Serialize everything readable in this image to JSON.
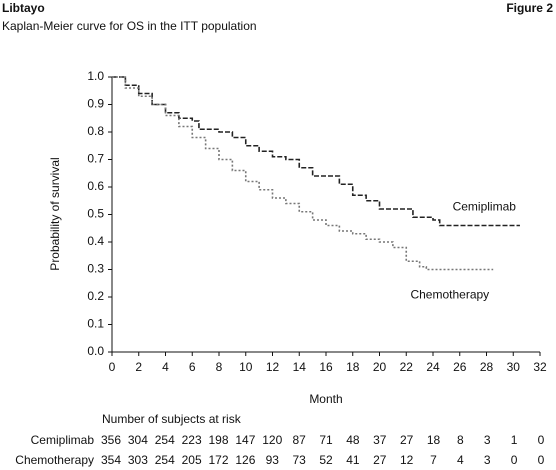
{
  "header": {
    "brand": "Libtayo",
    "figure": "Figure 2",
    "subtitle": "Kaplan-Meier curve for OS in the ITT population"
  },
  "chart_data": {
    "type": "step",
    "xlabel": "Month",
    "ylabel": "Probability of survival",
    "xlim": [
      0,
      32
    ],
    "ylim": [
      0,
      1
    ],
    "xticks": [
      0,
      2,
      4,
      6,
      8,
      10,
      12,
      14,
      16,
      18,
      20,
      22,
      24,
      26,
      28,
      30,
      32
    ],
    "yticks": [
      {
        "value": 0,
        "label": "0.0"
      },
      {
        "value": 0.1,
        "label": "0.1"
      },
      {
        "value": 0.2,
        "label": "0.2"
      },
      {
        "value": 0.3,
        "label": "0.3"
      },
      {
        "value": 0.4,
        "label": "0.4"
      },
      {
        "value": 0.5,
        "label": "0.5"
      },
      {
        "value": 0.6,
        "label": "0.6"
      },
      {
        "value": 0.7,
        "label": "0.7"
      },
      {
        "value": 0.8,
        "label": "0.8"
      },
      {
        "value": 0.9,
        "label": "0.9"
      },
      {
        "value": 1,
        "label": "1.0"
      }
    ],
    "series": [
      {
        "name": "Cemiplimab",
        "color": "#222222",
        "dash": "dashed",
        "x": [
          0,
          1,
          2,
          3,
          4,
          5,
          6,
          6.5,
          8,
          9,
          10,
          11,
          12,
          13,
          14,
          15,
          17,
          18,
          19,
          20,
          22,
          22.5,
          24,
          24.5,
          30.5
        ],
        "values": [
          1.0,
          0.97,
          0.94,
          0.9,
          0.87,
          0.85,
          0.84,
          0.81,
          0.8,
          0.78,
          0.75,
          0.73,
          0.71,
          0.7,
          0.67,
          0.64,
          0.61,
          0.57,
          0.55,
          0.52,
          0.52,
          0.49,
          0.48,
          0.46,
          0.46
        ]
      },
      {
        "name": "Chemotherapy",
        "color": "#777777",
        "dash": "dotted",
        "x": [
          0,
          1,
          2,
          3,
          4,
          5,
          6,
          7,
          8,
          9,
          10,
          11,
          12,
          13,
          14,
          15,
          16,
          17,
          18,
          19,
          20,
          21,
          22,
          23,
          23.5,
          28.5
        ],
        "values": [
          1.0,
          0.96,
          0.93,
          0.9,
          0.86,
          0.82,
          0.78,
          0.74,
          0.7,
          0.66,
          0.62,
          0.59,
          0.56,
          0.54,
          0.51,
          0.48,
          0.46,
          0.44,
          0.43,
          0.41,
          0.4,
          0.38,
          0.33,
          0.31,
          0.3,
          0.3
        ]
      }
    ]
  },
  "at_risk": {
    "title": "Number of subjects at risk",
    "rows": [
      {
        "name": "Cemiplimab",
        "values": [
          356,
          304,
          254,
          223,
          198,
          147,
          120,
          87,
          71,
          48,
          37,
          27,
          18,
          8,
          3,
          1,
          0
        ]
      },
      {
        "name": "Chemotherapy",
        "values": [
          354,
          303,
          254,
          205,
          172,
          126,
          93,
          73,
          52,
          41,
          27,
          12,
          7,
          4,
          3,
          0,
          0
        ]
      }
    ]
  }
}
